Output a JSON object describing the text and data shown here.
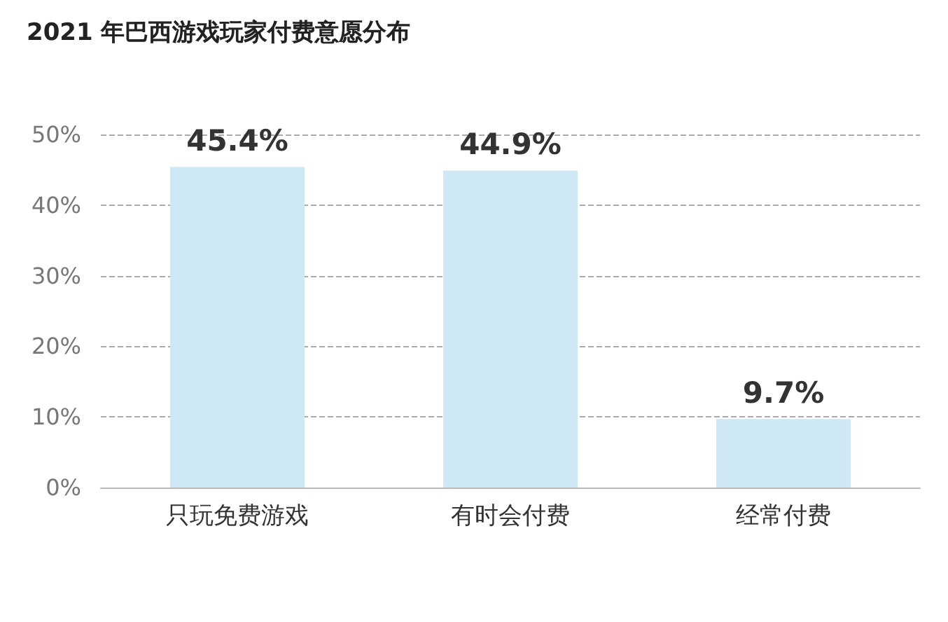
{
  "chart_data": {
    "type": "bar",
    "title": "2021 年巴西游戏玩家付费意愿分布",
    "categories": [
      "只玩免费游戏",
      "有时会付费",
      "经常付费"
    ],
    "values": [
      45.4,
      44.9,
      9.7
    ],
    "color": "#cfe8f6",
    "value_labels": [
      "45.4%",
      "44.9%",
      "9.7%"
    ],
    "ylim": [
      0,
      50
    ],
    "yticks": [
      {
        "value": 0,
        "label": "0%"
      },
      {
        "value": 10,
        "label": "10%"
      },
      {
        "value": 20,
        "label": "20%"
      },
      {
        "value": 30,
        "label": "30%"
      },
      {
        "value": 40,
        "label": "40%"
      },
      {
        "value": 50,
        "label": "50%"
      }
    ],
    "grid": "y"
  }
}
